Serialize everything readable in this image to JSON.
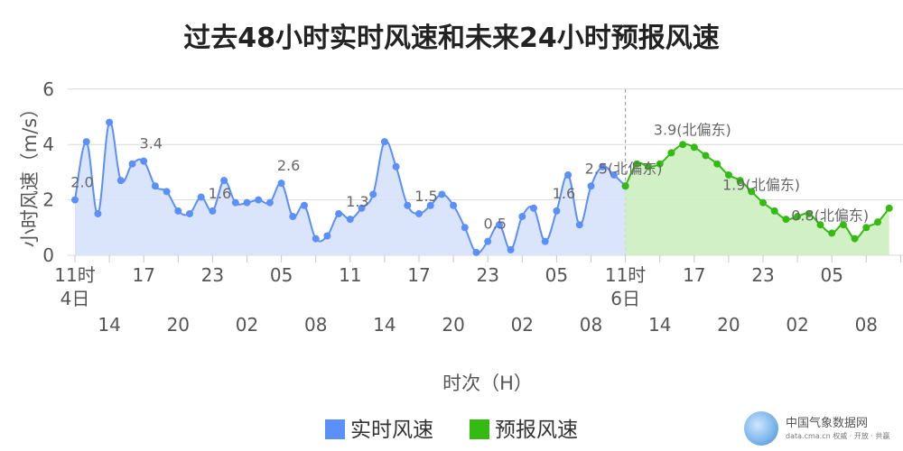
{
  "chart_data": {
    "type": "area",
    "title": "过去48小时实时风速和未来24小时预报风速",
    "xlabel": "时次（H）",
    "ylabel": "小时风速（m/s）",
    "ylim": [
      0,
      6
    ],
    "yticks": [
      "0",
      "2",
      "4",
      "6"
    ],
    "grid": true,
    "legend_position": "bottom-center",
    "top_tick_labels": [
      {
        "hour_index": 0,
        "label": "11时",
        "sub": "4日"
      },
      {
        "hour_index": 6,
        "label": "17"
      },
      {
        "hour_index": 12,
        "label": "23"
      },
      {
        "hour_index": 18,
        "label": "05"
      },
      {
        "hour_index": 24,
        "label": "11"
      },
      {
        "hour_index": 30,
        "label": "17"
      },
      {
        "hour_index": 36,
        "label": "23"
      },
      {
        "hour_index": 42,
        "label": "05"
      },
      {
        "hour_index": 48,
        "label": "11时",
        "sub": "6日"
      },
      {
        "hour_index": 54,
        "label": "17"
      },
      {
        "hour_index": 60,
        "label": "23"
      },
      {
        "hour_index": 66,
        "label": "05"
      }
    ],
    "bottom_tick_labels": [
      {
        "hour_index": 3,
        "label": "14"
      },
      {
        "hour_index": 9,
        "label": "20"
      },
      {
        "hour_index": 15,
        "label": "02"
      },
      {
        "hour_index": 21,
        "label": "08"
      },
      {
        "hour_index": 27,
        "label": "14"
      },
      {
        "hour_index": 33,
        "label": "20"
      },
      {
        "hour_index": 39,
        "label": "02"
      },
      {
        "hour_index": 45,
        "label": "08"
      },
      {
        "hour_index": 51,
        "label": "14"
      },
      {
        "hour_index": 57,
        "label": "20"
      },
      {
        "hour_index": 63,
        "label": "02"
      },
      {
        "hour_index": 69,
        "label": "08"
      }
    ],
    "series": [
      {
        "name": "实时风速",
        "color": "#5b8ff9",
        "fill": "#d6e2fb",
        "start_index": 0,
        "values": [
          2.0,
          4.1,
          1.5,
          4.8,
          2.7,
          3.3,
          3.4,
          2.5,
          2.3,
          1.6,
          1.5,
          2.1,
          1.6,
          2.7,
          1.9,
          1.9,
          2.0,
          1.9,
          2.6,
          1.4,
          1.8,
          0.6,
          0.7,
          1.5,
          1.3,
          1.7,
          2.2,
          4.1,
          3.2,
          1.8,
          1.5,
          1.8,
          2.2,
          1.8,
          1.0,
          0.1,
          0.5,
          1.1,
          0.2,
          1.4,
          1.7,
          0.5,
          1.6,
          2.9,
          1.1,
          2.5,
          3.2,
          2.9,
          2.5
        ]
      },
      {
        "name": "预报风速",
        "color": "#33bb11",
        "fill": "#cdeec0",
        "start_index": 48,
        "values": [
          2.5,
          3.3,
          3.2,
          3.3,
          3.7,
          4.0,
          3.9,
          3.6,
          3.3,
          2.9,
          2.7,
          2.3,
          1.9,
          1.6,
          1.3,
          1.4,
          1.5,
          1.1,
          0.8,
          1.1,
          0.6,
          1.0,
          1.2,
          1.7
        ]
      }
    ],
    "annotations": [
      {
        "series": 0,
        "index": 0,
        "text": "2.0"
      },
      {
        "series": 0,
        "index": 6,
        "text": "3.4"
      },
      {
        "series": 0,
        "index": 12,
        "text": "1.6"
      },
      {
        "series": 0,
        "index": 18,
        "text": "2.6"
      },
      {
        "series": 0,
        "index": 24,
        "text": "1.3"
      },
      {
        "series": 0,
        "index": 30,
        "text": "1.5"
      },
      {
        "series": 0,
        "index": 36,
        "text": "0.5"
      },
      {
        "series": 0,
        "index": 42,
        "text": "1.6"
      },
      {
        "series": 1,
        "index": 48,
        "text": "2.5(北偏东)"
      },
      {
        "series": 1,
        "index": 54,
        "text": "3.9(北偏东)"
      },
      {
        "series": 1,
        "index": 60,
        "text": "1.9(北偏东)"
      },
      {
        "series": 1,
        "index": 66,
        "text": "0.8(北偏东)"
      }
    ]
  },
  "watermark": {
    "name": "中国气象数据网",
    "sub": "data.cma.cn 权威 · 开放 · 共赢"
  }
}
